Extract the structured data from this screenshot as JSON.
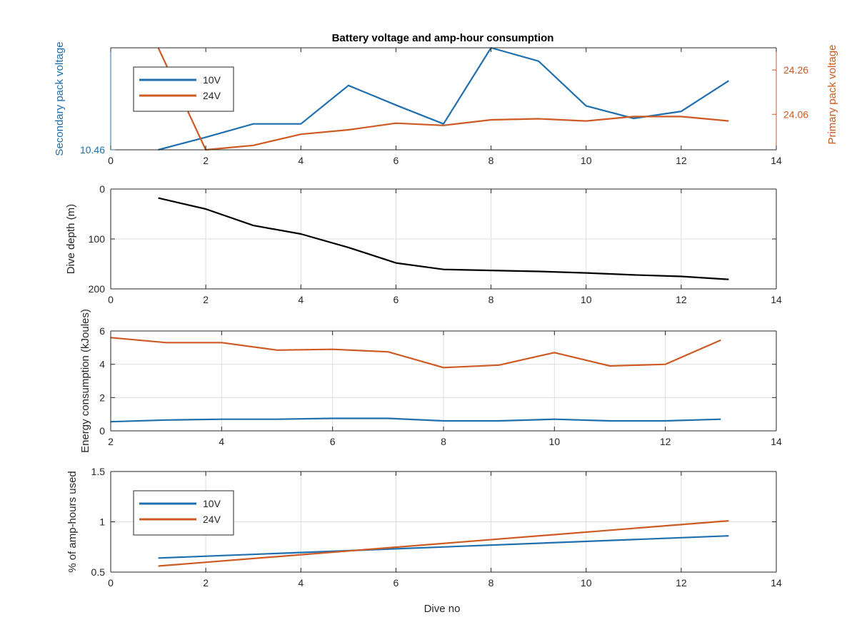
{
  "colors": {
    "blue": "#1f6fae",
    "orange": "#cc5a22",
    "black": "#000000",
    "axis": "#262626",
    "grid": "#dedede"
  },
  "chart_data": [
    {
      "type": "line",
      "title": "Battery voltage and amp-hour consumption",
      "xlabel": "",
      "ylabel_left": "Secondary pack voltage",
      "ylabel_right": "Primary pack voltage",
      "xlim": [
        0,
        14
      ],
      "xticks": [
        0,
        2,
        4,
        6,
        8,
        10,
        12,
        14
      ],
      "ylim_left": [
        10.46,
        10.59
      ],
      "yticks_left": [
        10.46
      ],
      "ylim_right": [
        23.9,
        24.36
      ],
      "yticks_right": [
        24.06,
        24.26
      ],
      "grid": false,
      "legend_position": "top-left",
      "series": [
        {
          "name": "10V",
          "axis": "left",
          "color": "#1f6fae",
          "x": [
            1,
            2,
            3,
            4,
            5,
            6,
            7,
            8,
            9,
            10,
            11,
            12,
            13
          ],
          "y": [
            10.46,
            10.476,
            10.493,
            10.493,
            10.542,
            10.517,
            10.493,
            10.59,
            10.573,
            10.516,
            10.5,
            10.509,
            10.548
          ]
        },
        {
          "name": "24V",
          "axis": "right",
          "color": "#cc5a22",
          "x": [
            1,
            2,
            3,
            4,
            5,
            6,
            7,
            8,
            9,
            10,
            11,
            12,
            13
          ],
          "y": [
            24.36,
            23.9,
            23.92,
            23.97,
            23.99,
            24.02,
            24.01,
            24.035,
            24.04,
            24.03,
            24.05,
            24.05,
            24.03
          ]
        }
      ]
    },
    {
      "type": "line",
      "title": "",
      "xlabel": "",
      "ylabel": "Dive depth (m)",
      "xlim": [
        0,
        14
      ],
      "xticks": [
        0,
        2,
        4,
        6,
        8,
        10,
        12,
        14
      ],
      "ylim": [
        0,
        200
      ],
      "yticks": [
        0,
        100,
        200
      ],
      "y_reversed": true,
      "grid": true,
      "series": [
        {
          "name": "",
          "color": "#000000",
          "x": [
            1,
            2,
            3,
            4,
            5,
            6,
            7,
            8,
            9,
            10,
            11,
            12,
            13
          ],
          "y": [
            18,
            40,
            73,
            90,
            117,
            148,
            161,
            163,
            165,
            168,
            172,
            175,
            181
          ]
        }
      ]
    },
    {
      "type": "line",
      "title": "",
      "xlabel": "",
      "ylabel": "Energy consumption (kJoules)",
      "xlim": [
        2,
        14
      ],
      "xticks": [
        2,
        4,
        6,
        8,
        10,
        12,
        14
      ],
      "ylim": [
        0,
        6
      ],
      "yticks": [
        0,
        2,
        4,
        6
      ],
      "grid": true,
      "series": [
        {
          "name": "",
          "color": "#cc5a22",
          "x": [
            2,
            3,
            4,
            5,
            6,
            7,
            8,
            9,
            10,
            11,
            12,
            13
          ],
          "y": [
            5.6,
            5.3,
            5.3,
            4.85,
            4.9,
            4.75,
            3.8,
            3.95,
            4.7,
            3.9,
            4.0,
            5.45
          ]
        },
        {
          "name": "",
          "color": "#1f6fae",
          "x": [
            2,
            3,
            4,
            5,
            6,
            7,
            8,
            9,
            10,
            11,
            12,
            13
          ],
          "y": [
            0.55,
            0.65,
            0.7,
            0.7,
            0.75,
            0.75,
            0.6,
            0.6,
            0.7,
            0.6,
            0.6,
            0.7
          ]
        }
      ]
    },
    {
      "type": "line",
      "title": "",
      "xlabel": "Dive no",
      "ylabel": "% of amp-hours used",
      "xlim": [
        0,
        14
      ],
      "xticks": [
        0,
        2,
        4,
        6,
        8,
        10,
        12,
        14
      ],
      "ylim": [
        0.5,
        1.5
      ],
      "yticks": [
        0.5,
        1,
        1.5
      ],
      "grid": true,
      "legend_position": "top-left",
      "series": [
        {
          "name": "10V",
          "color": "#1f6fae",
          "x": [
            1,
            13
          ],
          "y": [
            0.64,
            0.86
          ]
        },
        {
          "name": "24V",
          "color": "#cc5a22",
          "x": [
            1,
            13
          ],
          "y": [
            0.56,
            1.01
          ]
        }
      ]
    }
  ]
}
